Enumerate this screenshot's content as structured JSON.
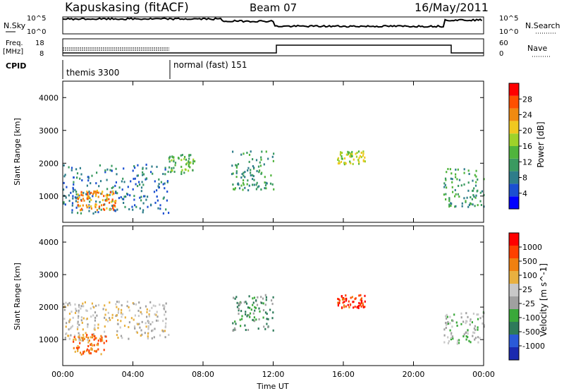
{
  "header": {
    "station": "Kapuskasing (fitACF)",
    "beam": "Beam 07",
    "date": "16/May/2011"
  },
  "panels": {
    "nsky_label": "N.Sky",
    "nsearch_label": "N.Search",
    "nsky_ticks": [
      "10^5",
      "10^0"
    ],
    "freq_label": "Freq.",
    "freq_unit": "[MHz]",
    "freq_ticks": [
      "18",
      "8"
    ],
    "nave_label": "Nave",
    "nave_ticks": [
      "60",
      "0"
    ],
    "cpid_label": "CPID",
    "cpid_modes": [
      "themis 3300",
      "normal (fast) 151"
    ]
  },
  "colors": {
    "power": [
      "#0000ff",
      "#1b4fd1",
      "#2e7d8a",
      "#3a9a60",
      "#50b43c",
      "#9ed22a",
      "#f0c820",
      "#f08a10",
      "#ff5000",
      "#ff0000"
    ],
    "velocity": [
      "#1a2ab0",
      "#2a5ad8",
      "#2e7a5a",
      "#3aa83a",
      "#a0a0a0",
      "#c8c8c8",
      "#e8b040",
      "#f08010",
      "#ff4000",
      "#ff0000"
    ]
  },
  "chart_data": [
    {
      "type": "heatmap",
      "name": "power",
      "title": "",
      "xlabel": "",
      "ylabel": "Slant Range [km]",
      "yticks": [
        "1000",
        "2000",
        "3000",
        "4000"
      ],
      "ylim": [
        200,
        4500
      ],
      "colorbar_label": "Power [dB]",
      "colorbar_ticks": [
        "4",
        "8",
        "12",
        "16",
        "20",
        "24",
        "28"
      ],
      "regions": [
        {
          "t0": 0.0,
          "t1": 6.0,
          "r0": 500,
          "r1": 2000,
          "level": 2
        },
        {
          "t0": 0.8,
          "t1": 3.0,
          "r0": 600,
          "r1": 1200,
          "level": 7
        },
        {
          "t0": 6.0,
          "t1": 7.5,
          "r0": 1700,
          "r1": 2300,
          "level": 4
        },
        {
          "t0": 9.6,
          "t1": 12.0,
          "r0": 1200,
          "r1": 2400,
          "level": 3
        },
        {
          "t0": 15.6,
          "t1": 17.2,
          "r0": 2000,
          "r1": 2400,
          "level": 5
        },
        {
          "t0": 21.7,
          "t1": 24.0,
          "r0": 700,
          "r1": 1900,
          "level": 3
        }
      ]
    },
    {
      "type": "heatmap",
      "name": "velocity",
      "title": "",
      "xlabel": "Time UT",
      "ylabel": "Slant Range [km]",
      "xticks": [
        "00:00",
        "04:00",
        "08:00",
        "12:00",
        "16:00",
        "20:00",
        "00:00"
      ],
      "yticks": [
        "1000",
        "2000",
        "3000",
        "4000"
      ],
      "ylim": [
        200,
        4500
      ],
      "colorbar_label": "Velocity [m s^-1]",
      "colorbar_ticks": [
        "1000",
        "500",
        "100",
        "25",
        "-25",
        "-100",
        "-500",
        "-1000"
      ],
      "regions": [
        {
          "t0": 0.0,
          "t1": 6.0,
          "r0": 1000,
          "r1": 2200,
          "level": 5
        },
        {
          "t0": 0.5,
          "t1": 2.5,
          "r0": 550,
          "r1": 1200,
          "level": 7
        },
        {
          "t0": 9.6,
          "t1": 12.0,
          "r0": 1300,
          "r1": 2400,
          "level": 3
        },
        {
          "t0": 15.6,
          "t1": 17.2,
          "r0": 2000,
          "r1": 2400,
          "level": 8
        },
        {
          "t0": 21.7,
          "t1": 24.0,
          "r0": 900,
          "r1": 1900,
          "level": 4
        }
      ]
    }
  ]
}
